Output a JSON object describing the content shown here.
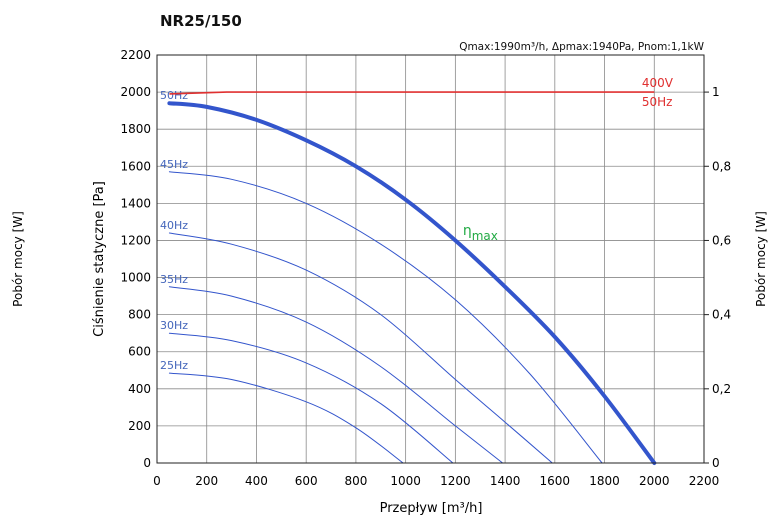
{
  "chart_data": {
    "type": "line",
    "title": "NR25/150",
    "subtitle": "Qmax:1990m³/h, Δpmax:1940Pa, Pnom:1,1kW",
    "xlabel": "Przepływ [m³/h]",
    "ylabel": "Ciśnienie statyczne [Pa]",
    "y2label": "Pobór mocy [W]",
    "outer_left_label": "Pobór mocy [W]",
    "outer_right_label": "Pobór mocy [W]",
    "xlim": [
      0,
      2200
    ],
    "ylim": [
      0,
      2200
    ],
    "y2lim": [
      0,
      1.1
    ],
    "xticks": [
      "0",
      "200",
      "400",
      "600",
      "800",
      "1000",
      "1200",
      "1400",
      "1600",
      "1800",
      "2000",
      "2200"
    ],
    "yticks": [
      "0",
      "200",
      "400",
      "600",
      "800",
      "1000",
      "1200",
      "1400",
      "1600",
      "1800",
      "2000",
      "2200"
    ],
    "y2ticks": [
      "0",
      "0,2",
      "0,4",
      "0,6",
      "0,8",
      "1"
    ],
    "grid": true,
    "series": [
      {
        "name": "50Hz",
        "color": "#3355cc",
        "width": 4,
        "x": [
          50,
          200,
          400,
          600,
          800,
          1000,
          1200,
          1400,
          1600,
          1800,
          2000
        ],
        "y": [
          1940,
          1920,
          1850,
          1740,
          1600,
          1420,
          1200,
          950,
          680,
          360,
          0
        ]
      },
      {
        "name": "45Hz",
        "color": "#3355cc",
        "width": 1,
        "x": [
          50,
          300,
          600,
          900,
          1200,
          1500,
          1790
        ],
        "y": [
          1570,
          1530,
          1400,
          1180,
          880,
          480,
          0
        ]
      },
      {
        "name": "40Hz",
        "color": "#3355cc",
        "width": 1,
        "x": [
          50,
          300,
          600,
          900,
          1200,
          1400,
          1590
        ],
        "y": [
          1240,
          1180,
          1040,
          800,
          450,
          220,
          0
        ]
      },
      {
        "name": "35Hz",
        "color": "#3355cc",
        "width": 1,
        "x": [
          50,
          300,
          600,
          900,
          1200,
          1390
        ],
        "y": [
          950,
          900,
          760,
          520,
          200,
          0
        ]
      },
      {
        "name": "30Hz",
        "color": "#3355cc",
        "width": 1,
        "x": [
          50,
          300,
          600,
          900,
          1190
        ],
        "y": [
          700,
          660,
          540,
          320,
          0
        ]
      },
      {
        "name": "25Hz",
        "color": "#3355cc",
        "width": 1,
        "x": [
          50,
          300,
          600,
          800,
          990
        ],
        "y": [
          485,
          450,
          330,
          190,
          0
        ]
      }
    ],
    "power_line": {
      "label_top": "400V",
      "label_bottom": "50Hz",
      "color": "#e03030",
      "x": [
        50,
        280,
        2000
      ],
      "y2": [
        0.995,
        1.0,
        1.0
      ]
    },
    "annotation": {
      "text": "η",
      "subscript": "max",
      "color": "#22aa44",
      "x": 1230,
      "y": 1230
    }
  }
}
